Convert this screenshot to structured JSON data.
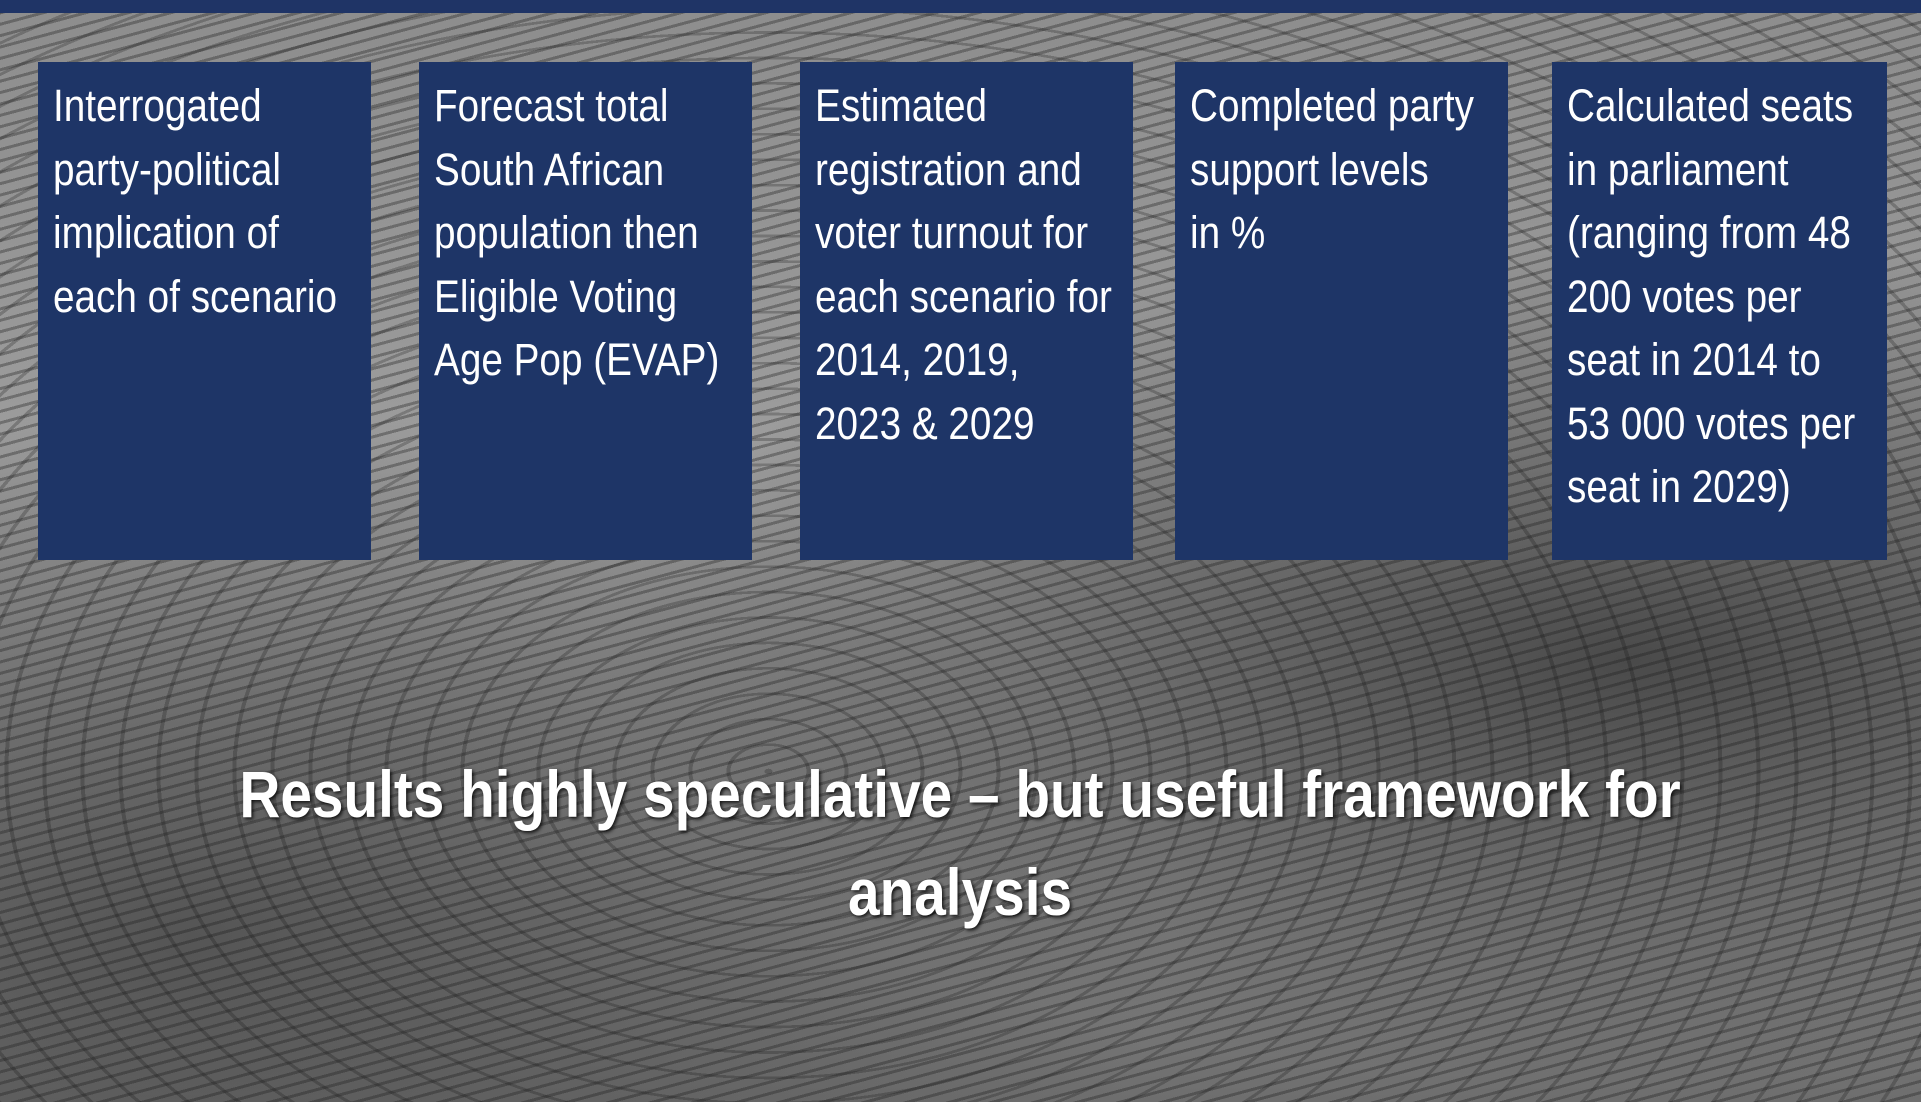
{
  "boxes": [
    {
      "lines": [
        "Interrogated",
        "party-political",
        "implication of",
        "each of scenario"
      ]
    },
    {
      "lines": [
        "Forecast total",
        "South African",
        "population then",
        "Eligible Voting",
        "Age Pop (EVAP)"
      ]
    },
    {
      "lines": [
        "Estimated",
        "registration and",
        "voter turnout for",
        "each scenario for",
        "2014, 2019,",
        "2023 & 2029"
      ]
    },
    {
      "lines": [
        "Completed party",
        "support levels",
        "in %"
      ]
    },
    {
      "lines": [
        "Calculated seats",
        "in parliament",
        "(ranging from 48",
        "200 votes per",
        "seat in 2014 to",
        "53 000 votes per",
        "seat in 2029)"
      ]
    }
  ],
  "caption": {
    "lines": [
      "Results highly speculative – but useful framework for",
      "analysis"
    ]
  }
}
